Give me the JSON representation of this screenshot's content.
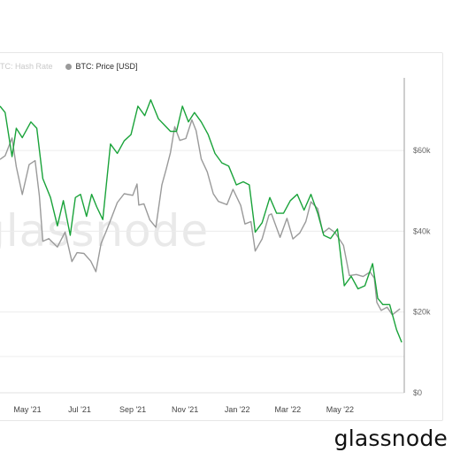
{
  "legend": {
    "hash_rate_label": "TC: Hash Rate",
    "price_label": "BTC: Price [USD]",
    "hash_rate_color": "#d9d9d9",
    "price_color": "#9a9a9a"
  },
  "watermark": "glassnode",
  "brand": "glassnode",
  "chart_data": {
    "type": "line",
    "title": "",
    "xlabel": "",
    "ylabel": "",
    "x_ticks": [
      "May '21",
      "Jul '21",
      "Sep '21",
      "Nov '21",
      "Jan '22",
      "Mar '22",
      "May '22"
    ],
    "x_range": [
      "2021-03-30",
      "2022-07-15"
    ],
    "right_y_axis": {
      "ticks": [
        "$0",
        "$20k",
        "$40k",
        "$60k"
      ],
      "tick_values": [
        0,
        20000,
        40000,
        60000
      ],
      "ylim": [
        0,
        78000
      ]
    },
    "grid": "horizontal",
    "legend_placement": "top-left",
    "series": [
      {
        "name": "BTC: Price [USD]",
        "color": "#9a9a9a",
        "axis": "right",
        "x": [
          "2021-03-30",
          "2021-04-05",
          "2021-04-13",
          "2021-04-18",
          "2021-04-25",
          "2021-05-03",
          "2021-05-10",
          "2021-05-15",
          "2021-05-19",
          "2021-05-26",
          "2021-06-05",
          "2021-06-14",
          "2021-06-22",
          "2021-06-28",
          "2021-07-06",
          "2021-07-14",
          "2021-07-20",
          "2021-07-26",
          "2021-08-01",
          "2021-08-08",
          "2021-08-14",
          "2021-08-22",
          "2021-09-01",
          "2021-09-06",
          "2021-09-08",
          "2021-09-14",
          "2021-09-21",
          "2021-09-28",
          "2021-10-05",
          "2021-10-10",
          "2021-10-15",
          "2021-10-20",
          "2021-10-26",
          "2021-11-02",
          "2021-11-09",
          "2021-11-14",
          "2021-11-20",
          "2021-11-27",
          "2021-12-04",
          "2021-12-10",
          "2021-12-20",
          "2021-12-27",
          "2022-01-05",
          "2022-01-10",
          "2022-01-17",
          "2022-01-22",
          "2022-01-30",
          "2022-02-07",
          "2022-02-10",
          "2022-02-20",
          "2022-02-28",
          "2022-03-07",
          "2022-03-15",
          "2022-03-22",
          "2022-03-28",
          "2022-04-05",
          "2022-04-11",
          "2022-04-18",
          "2022-04-25",
          "2022-05-05",
          "2022-05-12",
          "2022-05-20",
          "2022-05-28",
          "2022-06-05",
          "2022-06-10",
          "2022-06-13",
          "2022-06-18",
          "2022-06-25",
          "2022-07-01",
          "2022-07-10"
        ],
        "values": [
          57800,
          58700,
          63100,
          56000,
          49100,
          56500,
          57500,
          48800,
          37500,
          38200,
          36100,
          39800,
          32500,
          34700,
          34500,
          32600,
          30000,
          37000,
          40000,
          43800,
          47100,
          49300,
          48900,
          51700,
          46500,
          46800,
          42800,
          41000,
          51500,
          55300,
          59500,
          65900,
          62500,
          63000,
          67600,
          64900,
          57900,
          54700,
          49300,
          47400,
          46600,
          50400,
          46400,
          41800,
          42400,
          35100,
          38100,
          44000,
          44300,
          38500,
          43200,
          38100,
          39600,
          42400,
          47300,
          45600,
          39600,
          40800,
          39700,
          36500,
          29000,
          29300,
          28800,
          29900,
          28400,
          22400,
          20400,
          21200,
          19300,
          20800
        ]
      },
      {
        "name": "",
        "color": "#1aa33a",
        "axis": "left",
        "x": [
          "2021-03-30",
          "2021-04-05",
          "2021-04-13",
          "2021-04-18",
          "2021-04-25",
          "2021-05-05",
          "2021-05-12",
          "2021-05-19",
          "2021-05-28",
          "2021-06-05",
          "2021-06-12",
          "2021-06-20",
          "2021-06-26",
          "2021-07-02",
          "2021-07-09",
          "2021-07-15",
          "2021-07-21",
          "2021-07-28",
          "2021-08-06",
          "2021-08-14",
          "2021-08-22",
          "2021-08-30",
          "2021-09-07",
          "2021-09-15",
          "2021-09-22",
          "2021-10-01",
          "2021-10-08",
          "2021-10-15",
          "2021-10-22",
          "2021-10-29",
          "2021-11-05",
          "2021-11-12",
          "2021-11-20",
          "2021-11-28",
          "2021-12-06",
          "2021-12-14",
          "2021-12-22",
          "2021-12-31",
          "2022-01-08",
          "2022-01-15",
          "2022-01-22",
          "2022-01-30",
          "2022-02-08",
          "2022-02-16",
          "2022-02-24",
          "2022-03-04",
          "2022-03-12",
          "2022-03-20",
          "2022-03-28",
          "2022-04-05",
          "2022-04-12",
          "2022-04-20",
          "2022-04-28",
          "2022-05-06",
          "2022-05-14",
          "2022-05-22",
          "2022-05-30",
          "2022-06-08",
          "2022-06-14",
          "2022-06-20",
          "2022-06-28",
          "2022-07-06",
          "2022-07-12"
        ],
        "values": [
          0.91,
          0.89,
          0.75,
          0.84,
          0.81,
          0.86,
          0.84,
          0.68,
          0.62,
          0.53,
          0.61,
          0.5,
          0.62,
          0.63,
          0.56,
          0.63,
          0.59,
          0.55,
          0.79,
          0.76,
          0.8,
          0.82,
          0.91,
          0.88,
          0.93,
          0.87,
          0.85,
          0.83,
          0.83,
          0.91,
          0.86,
          0.89,
          0.86,
          0.82,
          0.76,
          0.73,
          0.72,
          0.66,
          0.67,
          0.66,
          0.51,
          0.54,
          0.62,
          0.57,
          0.57,
          0.61,
          0.63,
          0.58,
          0.63,
          0.57,
          0.5,
          0.49,
          0.52,
          0.34,
          0.37,
          0.33,
          0.34,
          0.41,
          0.3,
          0.28,
          0.28,
          0.2,
          0.16
        ]
      }
    ]
  }
}
